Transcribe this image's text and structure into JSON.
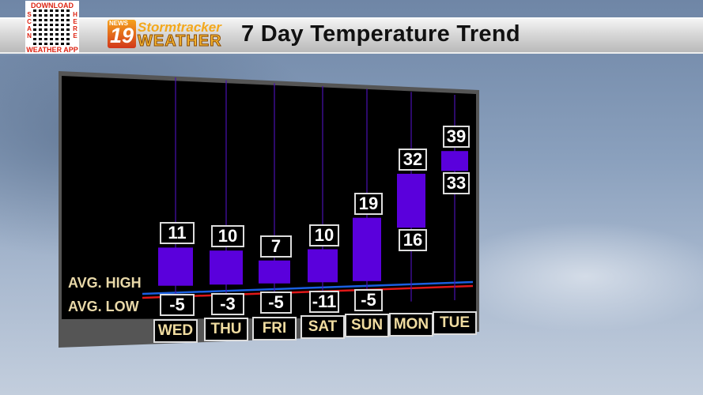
{
  "header": {
    "title": "7 Day Temperature Trend",
    "logo": {
      "station": "19",
      "network": "NEWS",
      "brand_top": "Stormtracker",
      "brand_bottom": "WEATHER"
    },
    "qr": {
      "top": "DOWNLOAD",
      "left": "SCAN",
      "right": "HERE",
      "bottom": "WEATHER APP"
    }
  },
  "chart_data": {
    "type": "bar",
    "subtype": "floating-range",
    "title": "7 Day Temperature Trend",
    "categories": [
      "WED",
      "THU",
      "FRI",
      "SAT",
      "SUN",
      "MON",
      "TUE"
    ],
    "series": [
      {
        "name": "high",
        "values": [
          11,
          10,
          7,
          10,
          19,
          32,
          39
        ]
      },
      {
        "name": "low",
        "values": [
          -5,
          -3,
          -5,
          -11,
          -5,
          16,
          33
        ]
      }
    ],
    "reference_lines": [
      {
        "label": "AVG. HIGH",
        "color": "#1a5fe0"
      },
      {
        "label": "AVG. LOW",
        "color": "#e01818"
      }
    ],
    "bar_color": "#5a00dc",
    "grid": false
  }
}
